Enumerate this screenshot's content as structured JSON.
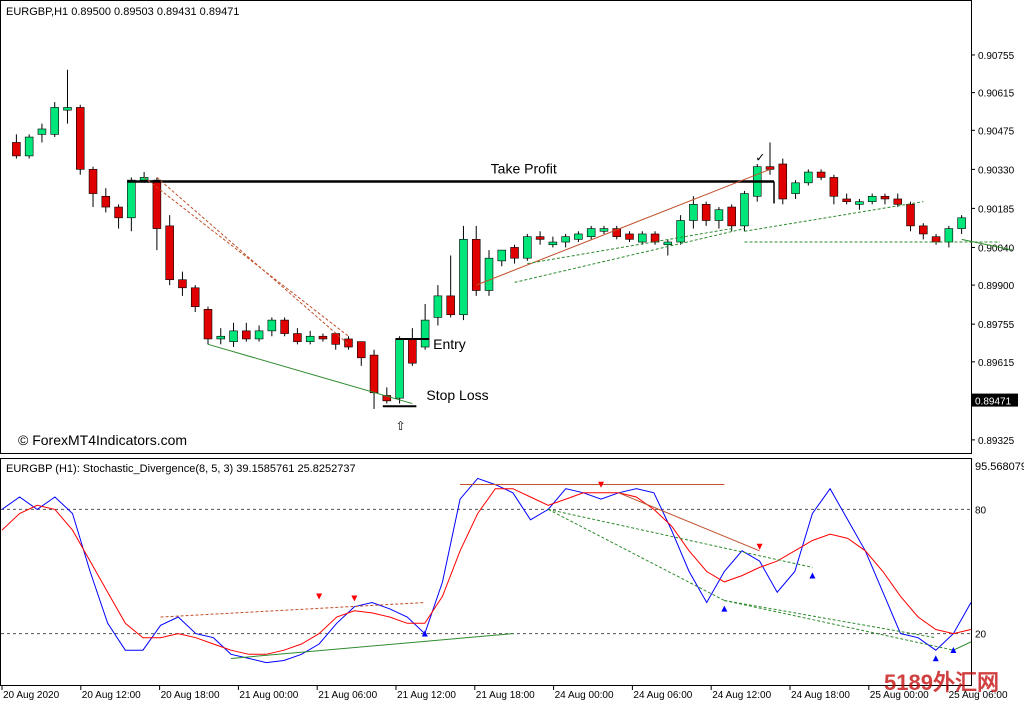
{
  "window": {
    "symbol_header": "EURGBP,H1  0.89500 0.89503 0.89431 0.89471",
    "watermark": "© ForexMT4Indicators.com",
    "corner_logo": "5189外汇网"
  },
  "chart_data": [
    {
      "type": "candlestick",
      "title": "EURGBP,H1  0.89500 0.89503 0.89431 0.89471",
      "y_ticks": [
        "0.90755",
        "0.90615",
        "0.90475",
        "0.90330",
        "0.90185",
        "0.90040",
        "0.89900",
        "0.89755",
        "0.89615",
        "0.89325"
      ],
      "y_tick_values": [
        0.90755,
        0.90615,
        0.90475,
        0.9033,
        0.90185,
        0.9004,
        0.899,
        0.89755,
        0.89615,
        0.89325
      ],
      "ylim": [
        0.8928,
        0.9087
      ],
      "current_price_label": "0.89471",
      "current_price": 0.89471,
      "candles": [
        {
          "o": 0.9043,
          "h": 0.9046,
          "l": 0.9037,
          "c": 0.9038
        },
        {
          "o": 0.9038,
          "h": 0.9046,
          "l": 0.9037,
          "c": 0.9045
        },
        {
          "o": 0.9046,
          "h": 0.905,
          "l": 0.9043,
          "c": 0.9048
        },
        {
          "o": 0.9046,
          "h": 0.9058,
          "l": 0.9045,
          "c": 0.9056
        },
        {
          "o": 0.9055,
          "h": 0.907,
          "l": 0.905,
          "c": 0.9056
        },
        {
          "o": 0.9056,
          "h": 0.9057,
          "l": 0.9031,
          "c": 0.9033
        },
        {
          "o": 0.9033,
          "h": 0.9034,
          "l": 0.9019,
          "c": 0.9024
        },
        {
          "o": 0.9023,
          "h": 0.9026,
          "l": 0.9017,
          "c": 0.9019
        },
        {
          "o": 0.9019,
          "h": 0.902,
          "l": 0.9011,
          "c": 0.9015
        },
        {
          "o": 0.9015,
          "h": 0.903,
          "l": 0.901,
          "c": 0.9029
        },
        {
          "o": 0.9029,
          "h": 0.9032,
          "l": 0.9028,
          "c": 0.903
        },
        {
          "o": 0.9029,
          "h": 0.903,
          "l": 0.9003,
          "c": 0.9011
        },
        {
          "o": 0.9012,
          "h": 0.9016,
          "l": 0.899,
          "c": 0.8992
        },
        {
          "o": 0.8992,
          "h": 0.8995,
          "l": 0.8986,
          "c": 0.8989
        },
        {
          "o": 0.8989,
          "h": 0.899,
          "l": 0.898,
          "c": 0.8982
        },
        {
          "o": 0.8981,
          "h": 0.8982,
          "l": 0.8968,
          "c": 0.897
        },
        {
          "o": 0.897,
          "h": 0.8974,
          "l": 0.8968,
          "c": 0.8971
        },
        {
          "o": 0.8969,
          "h": 0.8976,
          "l": 0.8967,
          "c": 0.8973
        },
        {
          "o": 0.8973,
          "h": 0.8976,
          "l": 0.8969,
          "c": 0.897
        },
        {
          "o": 0.897,
          "h": 0.8975,
          "l": 0.8969,
          "c": 0.8973
        },
        {
          "o": 0.8973,
          "h": 0.8978,
          "l": 0.8971,
          "c": 0.8977
        },
        {
          "o": 0.8977,
          "h": 0.8978,
          "l": 0.8971,
          "c": 0.8972
        },
        {
          "o": 0.8972,
          "h": 0.8974,
          "l": 0.8968,
          "c": 0.8969
        },
        {
          "o": 0.8969,
          "h": 0.8973,
          "l": 0.8968,
          "c": 0.8971
        },
        {
          "o": 0.8971,
          "h": 0.8972,
          "l": 0.8969,
          "c": 0.897
        },
        {
          "o": 0.8972,
          "h": 0.8972,
          "l": 0.8966,
          "c": 0.8968
        },
        {
          "o": 0.897,
          "h": 0.8971,
          "l": 0.8966,
          "c": 0.8967
        },
        {
          "o": 0.8969,
          "h": 0.8969,
          "l": 0.896,
          "c": 0.8963
        },
        {
          "o": 0.8964,
          "h": 0.8966,
          "l": 0.8944,
          "c": 0.895
        },
        {
          "o": 0.8949,
          "h": 0.8952,
          "l": 0.8946,
          "c": 0.8947
        },
        {
          "o": 0.8948,
          "h": 0.8971,
          "l": 0.8946,
          "c": 0.897
        },
        {
          "o": 0.897,
          "h": 0.8974,
          "l": 0.896,
          "c": 0.8961
        },
        {
          "o": 0.8967,
          "h": 0.8983,
          "l": 0.8966,
          "c": 0.8977
        },
        {
          "o": 0.8978,
          "h": 0.899,
          "l": 0.8975,
          "c": 0.8986
        },
        {
          "o": 0.8986,
          "h": 0.9001,
          "l": 0.8978,
          "c": 0.8979
        },
        {
          "o": 0.8979,
          "h": 0.9012,
          "l": 0.8977,
          "c": 0.9007
        },
        {
          "o": 0.9007,
          "h": 0.9012,
          "l": 0.8986,
          "c": 0.8988
        },
        {
          "o": 0.8988,
          "h": 0.9003,
          "l": 0.8986,
          "c": 0.9
        },
        {
          "o": 0.8999,
          "h": 0.9003,
          "l": 0.8997,
          "c": 0.9003
        },
        {
          "o": 0.9004,
          "h": 0.9005,
          "l": 0.8998,
          "c": 0.9
        },
        {
          "o": 0.9,
          "h": 0.9009,
          "l": 0.8999,
          "c": 0.9008
        },
        {
          "o": 0.9008,
          "h": 0.901,
          "l": 0.9005,
          "c": 0.9007
        },
        {
          "o": 0.9005,
          "h": 0.9008,
          "l": 0.9004,
          "c": 0.9006
        },
        {
          "o": 0.9006,
          "h": 0.9009,
          "l": 0.9004,
          "c": 0.9008
        },
        {
          "o": 0.9007,
          "h": 0.901,
          "l": 0.9006,
          "c": 0.9009
        },
        {
          "o": 0.9008,
          "h": 0.9012,
          "l": 0.9007,
          "c": 0.9011
        },
        {
          "o": 0.901,
          "h": 0.9012,
          "l": 0.9009,
          "c": 0.9011
        },
        {
          "o": 0.9011,
          "h": 0.9012,
          "l": 0.9007,
          "c": 0.9008
        },
        {
          "o": 0.9009,
          "h": 0.901,
          "l": 0.9006,
          "c": 0.9007
        },
        {
          "o": 0.9006,
          "h": 0.901,
          "l": 0.9005,
          "c": 0.9009
        },
        {
          "o": 0.9009,
          "h": 0.901,
          "l": 0.9005,
          "c": 0.9006
        },
        {
          "o": 0.9005,
          "h": 0.9007,
          "l": 0.9001,
          "c": 0.9006
        },
        {
          "o": 0.9006,
          "h": 0.9016,
          "l": 0.9005,
          "c": 0.9014
        },
        {
          "o": 0.9014,
          "h": 0.9023,
          "l": 0.9011,
          "c": 0.902
        },
        {
          "o": 0.902,
          "h": 0.9021,
          "l": 0.9012,
          "c": 0.9014
        },
        {
          "o": 0.9014,
          "h": 0.9019,
          "l": 0.9011,
          "c": 0.9018
        },
        {
          "o": 0.9019,
          "h": 0.902,
          "l": 0.901,
          "c": 0.9012
        },
        {
          "o": 0.9012,
          "h": 0.9025,
          "l": 0.901,
          "c": 0.9024
        },
        {
          "o": 0.9023,
          "h": 0.9035,
          "l": 0.9021,
          "c": 0.9034
        },
        {
          "o": 0.9034,
          "h": 0.9043,
          "l": 0.9031,
          "c": 0.9033
        },
        {
          "o": 0.9035,
          "h": 0.9037,
          "l": 0.902,
          "c": 0.9022
        },
        {
          "o": 0.9024,
          "h": 0.9029,
          "l": 0.9022,
          "c": 0.9028
        },
        {
          "o": 0.9028,
          "h": 0.9033,
          "l": 0.9027,
          "c": 0.9032
        },
        {
          "o": 0.9032,
          "h": 0.9033,
          "l": 0.9029,
          "c": 0.903
        },
        {
          "o": 0.903,
          "h": 0.9031,
          "l": 0.902,
          "c": 0.9023
        },
        {
          "o": 0.9022,
          "h": 0.9024,
          "l": 0.902,
          "c": 0.9021
        },
        {
          "o": 0.902,
          "h": 0.9022,
          "l": 0.9018,
          "c": 0.9021
        },
        {
          "o": 0.9021,
          "h": 0.9024,
          "l": 0.902,
          "c": 0.9023
        },
        {
          "o": 0.9023,
          "h": 0.9024,
          "l": 0.902,
          "c": 0.9022
        },
        {
          "o": 0.9022,
          "h": 0.9024,
          "l": 0.9019,
          "c": 0.902
        },
        {
          "o": 0.902,
          "h": 0.9021,
          "l": 0.901,
          "c": 0.9012
        },
        {
          "o": 0.9012,
          "h": 0.9013,
          "l": 0.9007,
          "c": 0.9009
        },
        {
          "o": 0.9008,
          "h": 0.9009,
          "l": 0.9005,
          "c": 0.9006
        },
        {
          "o": 0.9006,
          "h": 0.9012,
          "l": 0.9004,
          "c": 0.9011
        },
        {
          "o": 0.9011,
          "h": 0.9016,
          "l": 0.9009,
          "c": 0.9015
        }
      ],
      "annotations": [
        {
          "text": "Take Profit",
          "type": "level",
          "price": 0.90285,
          "from_bar": 9,
          "to_bar": 59
        },
        {
          "text": "Entry",
          "type": "level",
          "price": 0.897,
          "from_bar": 30,
          "to_bar": 32
        },
        {
          "text": "Stop Loss",
          "type": "level",
          "price": 0.8945,
          "from_bar": 29,
          "to_bar": 31
        }
      ],
      "checkmark_glyph": "✓",
      "arrow_glyph": "⇧",
      "colors": {
        "bull": "#00e67a",
        "bear": "#e00000",
        "outline": "#000000",
        "tp_line": "#000000"
      }
    },
    {
      "type": "line",
      "title": "EURGBP (H1):  Stochastic_Divergence(8, 5, 3) 39.1585761 25.8252737",
      "ylim": [
        0,
        100
      ],
      "top_value_label": "95.568079",
      "levels": [
        80,
        20
      ],
      "level_labels": [
        "80",
        "20"
      ],
      "x_tick_labels": [
        "20 Aug 2020",
        "20 Aug 12:00",
        "20 Aug 18:00",
        "21 Aug 00:00",
        "21 Aug 06:00",
        "21 Aug 12:00",
        "21 Aug 18:00",
        "24 Aug 00:00",
        "24 Aug 06:00",
        "24 Aug 12:00",
        "24 Aug 18:00",
        "25 Aug 00:00",
        "25 Aug 06:00"
      ],
      "series": [
        {
          "color": "#0000ff",
          "values": [
            80,
            86,
            80,
            86,
            78,
            50,
            25,
            12,
            12,
            24,
            28,
            20,
            18,
            10,
            8,
            6,
            7,
            10,
            15,
            25,
            33,
            35,
            32,
            28,
            20,
            45,
            85,
            95,
            92,
            88,
            75,
            80,
            90,
            88,
            85,
            88,
            90,
            88,
            70,
            50,
            35,
            50,
            60,
            55,
            40,
            50,
            78,
            90,
            75,
            60,
            40,
            20,
            18,
            12,
            20,
            35
          ]
        },
        {
          "color": "#ff0000",
          "values": [
            70,
            78,
            82,
            80,
            70,
            55,
            40,
            25,
            18,
            18,
            20,
            18,
            15,
            12,
            10,
            10,
            12,
            15,
            20,
            28,
            31,
            30,
            28,
            25,
            25,
            38,
            60,
            78,
            90,
            90,
            86,
            82,
            85,
            88,
            88,
            88,
            86,
            80,
            72,
            60,
            50,
            45,
            48,
            52,
            55,
            60,
            65,
            68,
            66,
            60,
            50,
            38,
            28,
            22,
            20,
            22
          ]
        }
      ],
      "arrows_down_at": [
        23,
        25,
        44,
        58
      ],
      "arrows_up_at": [
        29,
        54,
        63,
        74,
        78
      ]
    }
  ]
}
